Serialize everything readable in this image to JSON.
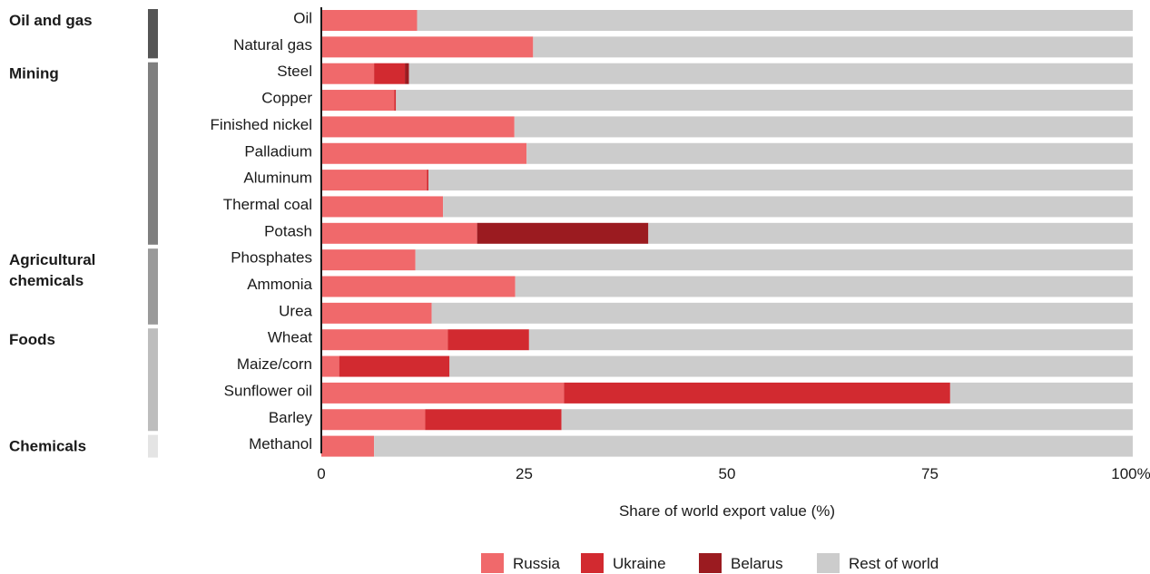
{
  "chart_data": {
    "type": "bar",
    "orientation": "horizontal",
    "stacked": true,
    "categories": [
      "Oil",
      "Natural gas",
      "Steel",
      "Copper",
      "Finished nickel",
      "Palladium",
      "Aluminum",
      "Thermal coal",
      "Potash",
      "Phosphates",
      "Ammonia",
      "Urea",
      "Wheat",
      "Maize/corn",
      "Sunflower oil",
      "Barley",
      "Methanol"
    ],
    "groups": [
      {
        "label": "Oil and gas",
        "categories": [
          "Oil",
          "Natural gas"
        ],
        "color": "#555555"
      },
      {
        "label": "Mining",
        "categories": [
          "Steel",
          "Copper",
          "Finished nickel",
          "Palladium",
          "Aluminum",
          "Thermal coal",
          "Potash"
        ],
        "color": "#7f7f7f"
      },
      {
        "label": "Agricultural\nchemicals",
        "categories": [
          "Phosphates",
          "Ammonia",
          "Urea"
        ],
        "color": "#9a9a9a"
      },
      {
        "label": "Foods",
        "categories": [
          "Wheat",
          "Maize/corn",
          "Sunflower oil",
          "Barley"
        ],
        "color": "#bdbdbd"
      },
      {
        "label": "Chemicals",
        "categories": [
          "Methanol"
        ],
        "color": "#e4e4e4"
      }
    ],
    "series": [
      {
        "name": "Russia",
        "color": "#f0696b",
        "values": [
          11.8,
          26.1,
          6.5,
          9.0,
          23.8,
          25.3,
          13.0,
          15.0,
          19.2,
          11.6,
          23.9,
          13.6,
          15.6,
          2.2,
          29.9,
          12.8,
          6.5
        ]
      },
      {
        "name": "Ukraine",
        "color": "#d22a30",
        "values": [
          0,
          0,
          3.8,
          0.2,
          0,
          0,
          0.2,
          0,
          0,
          0,
          0,
          0,
          10.0,
          13.6,
          47.6,
          16.8,
          0
        ]
      },
      {
        "name": "Belarus",
        "color": "#9b1b20",
        "values": [
          0,
          0,
          0.5,
          0,
          0,
          0,
          0,
          0,
          21.1,
          0,
          0,
          0,
          0,
          0,
          0,
          0,
          0
        ]
      },
      {
        "name": "Rest of world",
        "color": "#cccccc",
        "values": [
          88.2,
          73.9,
          89.2,
          90.8,
          76.2,
          74.7,
          86.8,
          85.0,
          59.7,
          88.4,
          76.1,
          86.4,
          74.4,
          84.2,
          22.5,
          70.4,
          93.5
        ]
      }
    ],
    "xlim": [
      0,
      100
    ],
    "xticks": [
      0,
      25,
      50,
      75,
      100
    ],
    "xtick_labels": [
      "0",
      "25",
      "50",
      "75",
      "100%"
    ],
    "xlabel": "Share of world export value (%)",
    "legend": {
      "placement": "bottom",
      "items": [
        "Russia",
        "Ukraine",
        "Belarus",
        "Rest of world"
      ]
    }
  }
}
